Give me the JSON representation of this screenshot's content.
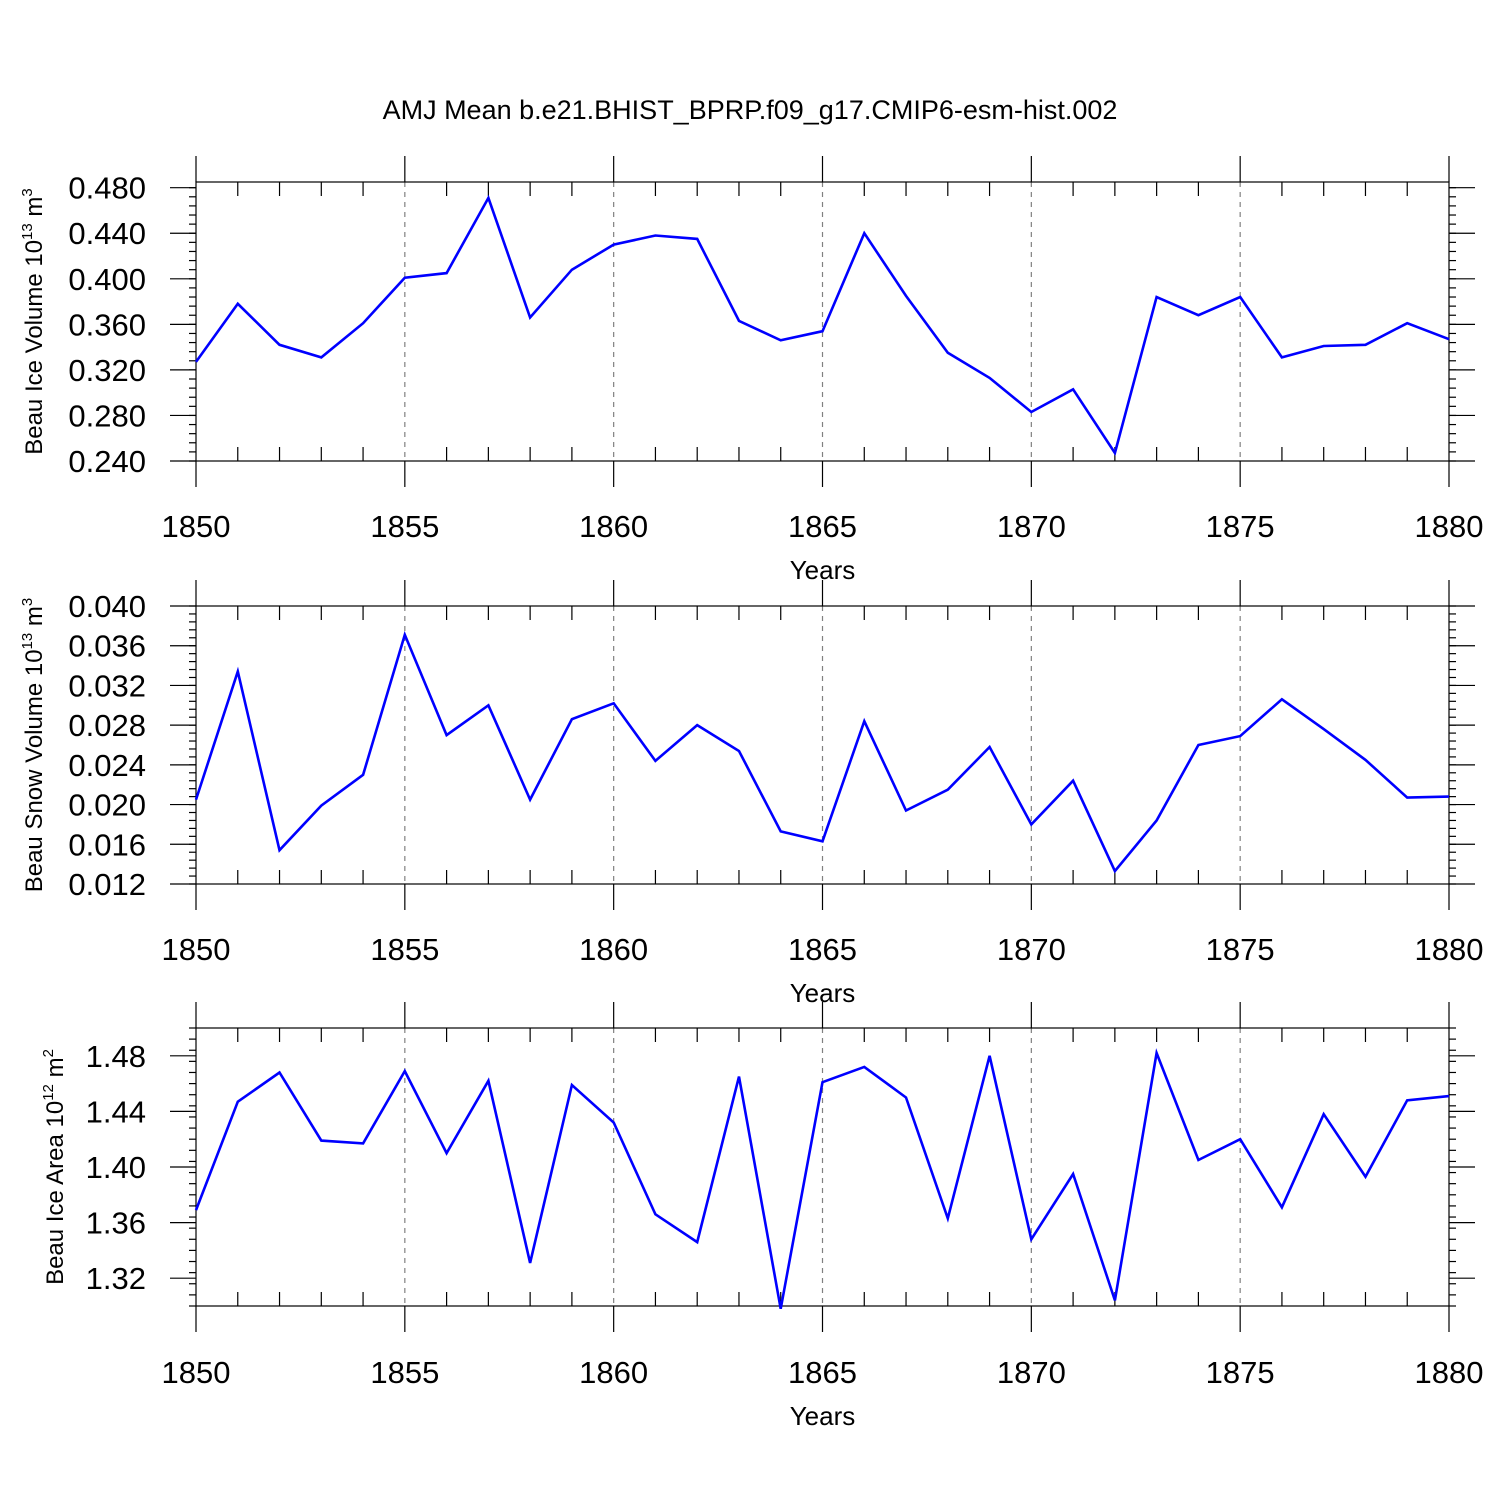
{
  "title": "AMJ Mean b.e21.BHIST_BPRP.f09_g17.CMIP6-esm-hist.002",
  "series_color": "#0000ff",
  "chart_data": [
    {
      "type": "line",
      "ylabel": {
        "main": "Beau Ice Volume 10",
        "exp": "13",
        "unit": " m",
        "unit_exp": "3"
      },
      "xlabel": "Years",
      "xlim": [
        1850,
        1880
      ],
      "ylim": [
        0.24,
        0.485
      ],
      "yticks": [
        0.24,
        0.28,
        0.32,
        0.36,
        0.4,
        0.44,
        0.48
      ],
      "yticklabels": [
        "0.240",
        "0.280",
        "0.320",
        "0.360",
        "0.400",
        "0.440",
        "0.480"
      ],
      "ytick_minor_step": 0.008,
      "xticks": [
        1850,
        1855,
        1860,
        1865,
        1870,
        1875,
        1880
      ],
      "xticklabels": [
        "1850",
        "1855",
        "1860",
        "1865",
        "1870",
        "1875",
        "1880"
      ],
      "x": [
        1850,
        1851,
        1852,
        1853,
        1854,
        1855,
        1856,
        1857,
        1858,
        1859,
        1860,
        1861,
        1862,
        1863,
        1864,
        1865,
        1866,
        1867,
        1868,
        1869,
        1870,
        1871,
        1872,
        1873,
        1874,
        1875,
        1876,
        1877,
        1878,
        1879,
        1880
      ],
      "y": [
        0.327,
        0.378,
        0.342,
        0.331,
        0.361,
        0.401,
        0.405,
        0.471,
        0.366,
        0.408,
        0.43,
        0.438,
        0.435,
        0.363,
        0.346,
        0.354,
        0.44,
        0.385,
        0.335,
        0.313,
        0.283,
        0.303,
        0.247,
        0.384,
        0.368,
        0.384,
        0.331,
        0.341,
        0.342,
        0.361,
        0.347
      ]
    },
    {
      "type": "line",
      "ylabel": {
        "main": "Beau Snow Volume 10",
        "exp": "13",
        "unit": " m",
        "unit_exp": "3"
      },
      "xlabel": "Years",
      "xlim": [
        1850,
        1880
      ],
      "ylim": [
        0.012,
        0.04
      ],
      "yticks": [
        0.012,
        0.016,
        0.02,
        0.024,
        0.028,
        0.032,
        0.036,
        0.04
      ],
      "yticklabels": [
        "0.012",
        "0.016",
        "0.020",
        "0.024",
        "0.028",
        "0.032",
        "0.036",
        "0.040"
      ],
      "ytick_minor_step": 0.0008,
      "xticks": [
        1850,
        1855,
        1860,
        1865,
        1870,
        1875,
        1880
      ],
      "xticklabels": [
        "1850",
        "1855",
        "1860",
        "1865",
        "1870",
        "1875",
        "1880"
      ],
      "x": [
        1850,
        1851,
        1852,
        1853,
        1854,
        1855,
        1856,
        1857,
        1858,
        1859,
        1860,
        1861,
        1862,
        1863,
        1864,
        1865,
        1866,
        1867,
        1868,
        1869,
        1870,
        1871,
        1872,
        1873,
        1874,
        1875,
        1876,
        1877,
        1878,
        1879,
        1880
      ],
      "y": [
        0.0205,
        0.0334,
        0.0154,
        0.0199,
        0.023,
        0.0371,
        0.027,
        0.03,
        0.0205,
        0.0286,
        0.0302,
        0.0244,
        0.028,
        0.0254,
        0.0173,
        0.0163,
        0.0284,
        0.0194,
        0.0215,
        0.0258,
        0.018,
        0.0224,
        0.0133,
        0.0184,
        0.026,
        0.0269,
        0.0306,
        0.0276,
        0.0245,
        0.0207,
        0.0208
      ]
    },
    {
      "type": "line",
      "ylabel": {
        "main": "Beau Ice Area 10",
        "exp": "12",
        "unit": " m",
        "unit_exp": "2"
      },
      "xlabel": "Years",
      "xlim": [
        1850,
        1880
      ],
      "ylim": [
        1.3,
        1.5
      ],
      "yticks": [
        1.32,
        1.36,
        1.4,
        1.44,
        1.48
      ],
      "yticklabels": [
        "1.32",
        "1.36",
        "1.40",
        "1.44",
        "1.48"
      ],
      "ytick_minor_step": 0.008,
      "xticks": [
        1850,
        1855,
        1860,
        1865,
        1870,
        1875,
        1880
      ],
      "xticklabels": [
        "1850",
        "1855",
        "1860",
        "1865",
        "1870",
        "1875",
        "1880"
      ],
      "x": [
        1850,
        1851,
        1852,
        1853,
        1854,
        1855,
        1856,
        1857,
        1858,
        1859,
        1860,
        1861,
        1862,
        1863,
        1864,
        1865,
        1866,
        1867,
        1868,
        1869,
        1870,
        1871,
        1872,
        1873,
        1874,
        1875,
        1876,
        1877,
        1878,
        1879,
        1880
      ],
      "y": [
        1.369,
        1.447,
        1.468,
        1.419,
        1.417,
        1.469,
        1.41,
        1.462,
        1.331,
        1.459,
        1.432,
        1.366,
        1.346,
        1.465,
        1.298,
        1.461,
        1.472,
        1.45,
        1.363,
        1.48,
        1.348,
        1.395,
        1.304,
        1.482,
        1.405,
        1.42,
        1.371,
        1.438,
        1.393,
        1.448,
        1.451
      ]
    }
  ]
}
